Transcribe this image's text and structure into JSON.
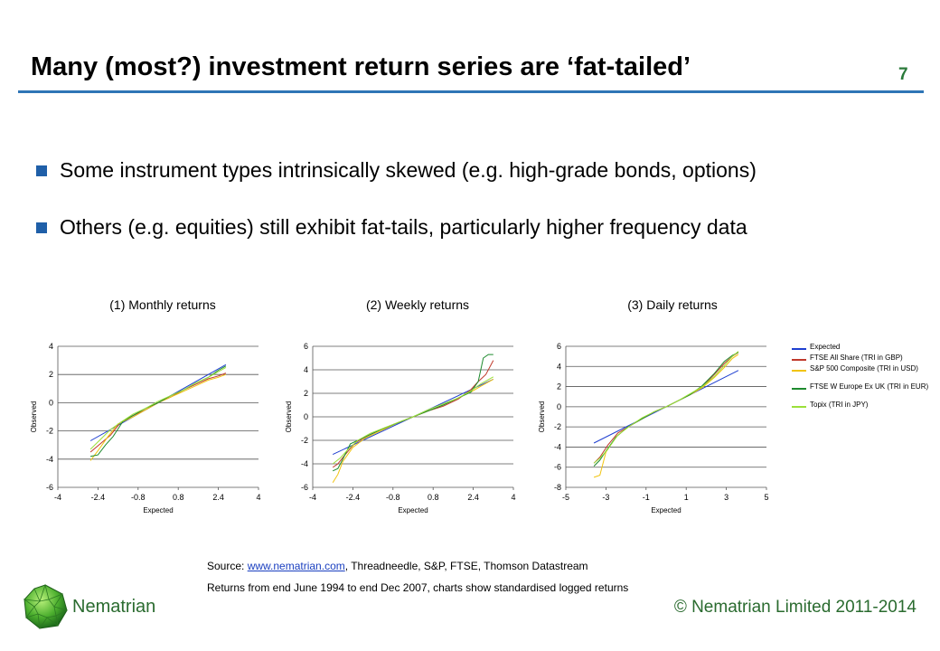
{
  "slide": {
    "title": "Many (most?) investment return series are ‘fat-tailed’",
    "number": "7",
    "bullets": [
      "Some instrument types intrinsically skewed (e.g. high-grade bonds, options)",
      "Others (e.g. equities) still exhibit fat-tails, particularly higher frequency data"
    ],
    "source_prefix": "Source: ",
    "source_link": "www.nematrian.com",
    "source_rest": ",  Threadneedle,  S&P, FTSE, Thomson Datastream",
    "note": "Returns from end June 1994 to end Dec 2007, charts show standardised logged returns",
    "brand": "Nematrian",
    "copyright": "© Nematrian Limited 2011-2014",
    "colors": {
      "accent_rule": "#2e75b6",
      "brand_green": "#2a6b2f",
      "bullet": "#1f5fa8"
    }
  },
  "legend": [
    {
      "name": "Expected",
      "color": "#1f3fd0"
    },
    {
      "name": "FTSE All Share (TRI in GBP)",
      "color": "#c0392b"
    },
    {
      "name": "S&P 500 Composite (TRI in USD)",
      "color": "#f1c40f"
    },
    {
      "name": "FTSE W Europe Ex UK (TRI in EUR)",
      "color": "#1e8a2e"
    },
    {
      "name": "Topix (TRI in JPY)",
      "color": "#9be03a"
    }
  ],
  "chart_data": [
    {
      "type": "line",
      "title": "(1) Monthly  returns",
      "xlabel": "Expected",
      "ylabel": "Observed",
      "xlim": [
        -4,
        4
      ],
      "ylim": [
        -6,
        4
      ],
      "xticks": [
        -4,
        -2.4,
        -0.8,
        0.8,
        2.4,
        4
      ],
      "yticks": [
        -6,
        -4,
        -2,
        0,
        2,
        4
      ],
      "series": [
        {
          "name": "Expected",
          "x": [
            -2.7,
            2.7
          ],
          "y": [
            -2.7,
            2.7
          ]
        },
        {
          "name": "FTSE All Share (TRI in GBP)",
          "x": [
            -2.7,
            -2.3,
            -1.9,
            -1.5,
            -1.0,
            -0.5,
            0,
            0.5,
            1.0,
            1.5,
            2.0,
            2.4,
            2.7
          ],
          "y": [
            -3.5,
            -2.9,
            -2.3,
            -1.4,
            -0.9,
            -0.5,
            0.0,
            0.4,
            0.9,
            1.3,
            1.7,
            1.9,
            2.1
          ]
        },
        {
          "name": "S&P 500 Composite (TRI in USD)",
          "x": [
            -2.7,
            -2.4,
            -2.0,
            -1.6,
            -1.0,
            -0.5,
            0,
            0.5,
            1.0,
            1.5,
            2.0,
            2.4,
            2.7
          ],
          "y": [
            -4.1,
            -3.4,
            -2.4,
            -1.5,
            -1.0,
            -0.5,
            0.0,
            0.4,
            0.8,
            1.2,
            1.6,
            1.8,
            2.0
          ]
        },
        {
          "name": "FTSE W Europe Ex UK (TRI in EUR)",
          "x": [
            -2.7,
            -2.4,
            -2.1,
            -1.8,
            -1.4,
            -1.0,
            -0.5,
            0,
            0.5,
            1.0,
            1.5,
            2.0,
            2.4,
            2.7
          ],
          "y": [
            -3.8,
            -3.7,
            -3.0,
            -2.4,
            -1.3,
            -0.9,
            -0.4,
            0.0,
            0.5,
            0.9,
            1.4,
            1.8,
            2.3,
            2.6
          ]
        },
        {
          "name": "Topix (TRI in JPY)",
          "x": [
            -2.7,
            -2.3,
            -1.9,
            -1.5,
            -1.0,
            -0.5,
            0,
            0.5,
            1.0,
            1.5,
            2.0,
            2.4,
            2.7
          ],
          "y": [
            -3.3,
            -2.6,
            -1.9,
            -1.4,
            -0.8,
            -0.4,
            0.1,
            0.5,
            0.9,
            1.4,
            1.8,
            2.2,
            2.5
          ]
        }
      ]
    },
    {
      "type": "line",
      "title": "(2) Weekly returns",
      "xlabel": "Expected",
      "ylabel": "Observed",
      "xlim": [
        -4,
        4
      ],
      "ylim": [
        -6,
        6
      ],
      "xticks": [
        -4,
        -2.4,
        -0.8,
        0.8,
        2.4,
        4
      ],
      "yticks": [
        -6,
        -4,
        -2,
        0,
        2,
        4,
        6
      ],
      "series": [
        {
          "name": "Expected",
          "x": [
            -3.2,
            3.2
          ],
          "y": [
            -3.2,
            3.2
          ]
        },
        {
          "name": "FTSE All Share (TRI in GBP)",
          "x": [
            -3.2,
            -3.0,
            -2.7,
            -2.3,
            -1.8,
            -1.2,
            -0.6,
            0,
            0.6,
            1.2,
            1.8,
            2.3,
            2.6,
            2.9,
            3.2
          ],
          "y": [
            -4.3,
            -4.0,
            -3.2,
            -2.2,
            -1.6,
            -1.0,
            -0.5,
            0.0,
            0.5,
            0.9,
            1.5,
            2.3,
            3.0,
            3.6,
            4.8
          ]
        },
        {
          "name": "S&P 500 Composite (TRI in USD)",
          "x": [
            -3.2,
            -3.0,
            -2.8,
            -2.4,
            -1.9,
            -1.2,
            -0.6,
            0,
            0.6,
            1.2,
            1.8,
            2.3,
            2.7,
            3.2
          ],
          "y": [
            -5.6,
            -4.9,
            -3.8,
            -2.6,
            -1.8,
            -1.1,
            -0.5,
            0.0,
            0.5,
            1.0,
            1.6,
            2.1,
            2.6,
            3.2
          ]
        },
        {
          "name": "FTSE W Europe Ex UK (TRI in EUR)",
          "x": [
            -3.2,
            -3.0,
            -2.8,
            -2.5,
            -2.0,
            -1.3,
            -0.6,
            0,
            0.6,
            1.2,
            1.8,
            2.3,
            2.6,
            2.8,
            3.0,
            3.2
          ],
          "y": [
            -4.6,
            -4.4,
            -3.6,
            -2.3,
            -1.8,
            -1.1,
            -0.5,
            0.0,
            0.5,
            1.0,
            1.6,
            2.1,
            3.0,
            5.0,
            5.3,
            5.3
          ]
        },
        {
          "name": "Topix (TRI in JPY)",
          "x": [
            -3.2,
            -2.9,
            -2.6,
            -2.2,
            -1.7,
            -1.1,
            -0.5,
            0,
            0.6,
            1.2,
            1.8,
            2.3,
            2.7,
            3.2
          ],
          "y": [
            -4.0,
            -3.5,
            -2.8,
            -2.0,
            -1.4,
            -0.9,
            -0.4,
            0.0,
            0.6,
            1.1,
            1.6,
            2.2,
            2.8,
            3.4
          ]
        }
      ]
    },
    {
      "type": "line",
      "title": "(3) Daily returns",
      "xlabel": "Expected",
      "ylabel": "Observed",
      "xlim": [
        -5,
        5
      ],
      "ylim": [
        -8,
        6
      ],
      "xticks": [
        -5,
        -3,
        -1,
        1,
        3,
        5
      ],
      "yticks": [
        -8,
        -6,
        -4,
        -2,
        0,
        2,
        4,
        6
      ],
      "series": [
        {
          "name": "Expected",
          "x": [
            -3.6,
            3.6
          ],
          "y": [
            -3.6,
            3.6
          ]
        },
        {
          "name": "FTSE All Share (TRI in GBP)",
          "x": [
            -3.6,
            -3.3,
            -2.9,
            -2.4,
            -1.8,
            -1.2,
            -0.6,
            0,
            0.6,
            1.2,
            1.8,
            2.4,
            2.9,
            3.3,
            3.6
          ],
          "y": [
            -5.6,
            -5.0,
            -3.8,
            -2.6,
            -1.9,
            -1.2,
            -0.5,
            0.0,
            0.6,
            1.2,
            2.0,
            3.2,
            4.3,
            5.0,
            5.4
          ]
        },
        {
          "name": "S&P 500 Composite (TRI in USD)",
          "x": [
            -3.6,
            -3.3,
            -3.0,
            -2.5,
            -1.9,
            -1.2,
            -0.6,
            0,
            0.6,
            1.2,
            1.8,
            2.4,
            2.9,
            3.3,
            3.6
          ],
          "y": [
            -7.0,
            -6.8,
            -4.5,
            -3.0,
            -2.0,
            -1.2,
            -0.5,
            0.0,
            0.6,
            1.2,
            1.9,
            2.9,
            3.9,
            4.8,
            5.2
          ]
        },
        {
          "name": "FTSE W Europe Ex UK (TRI in EUR)",
          "x": [
            -3.6,
            -3.3,
            -3.0,
            -2.5,
            -1.9,
            -1.2,
            -0.6,
            0,
            0.6,
            1.2,
            1.8,
            2.4,
            2.9,
            3.3,
            3.6
          ],
          "y": [
            -5.9,
            -5.3,
            -4.4,
            -3.0,
            -2.0,
            -1.2,
            -0.5,
            0.0,
            0.6,
            1.2,
            2.1,
            3.3,
            4.5,
            5.1,
            5.4
          ]
        },
        {
          "name": "Topix (TRI in JPY)",
          "x": [
            -3.6,
            -3.3,
            -2.9,
            -2.4,
            -1.8,
            -1.2,
            -0.6,
            0,
            0.6,
            1.2,
            1.8,
            2.4,
            2.9,
            3.3,
            3.6
          ],
          "y": [
            -5.6,
            -5.1,
            -4.2,
            -2.8,
            -1.9,
            -1.1,
            -0.5,
            0.0,
            0.6,
            1.3,
            2.0,
            3.0,
            4.1,
            5.0,
            5.5
          ]
        }
      ]
    }
  ]
}
